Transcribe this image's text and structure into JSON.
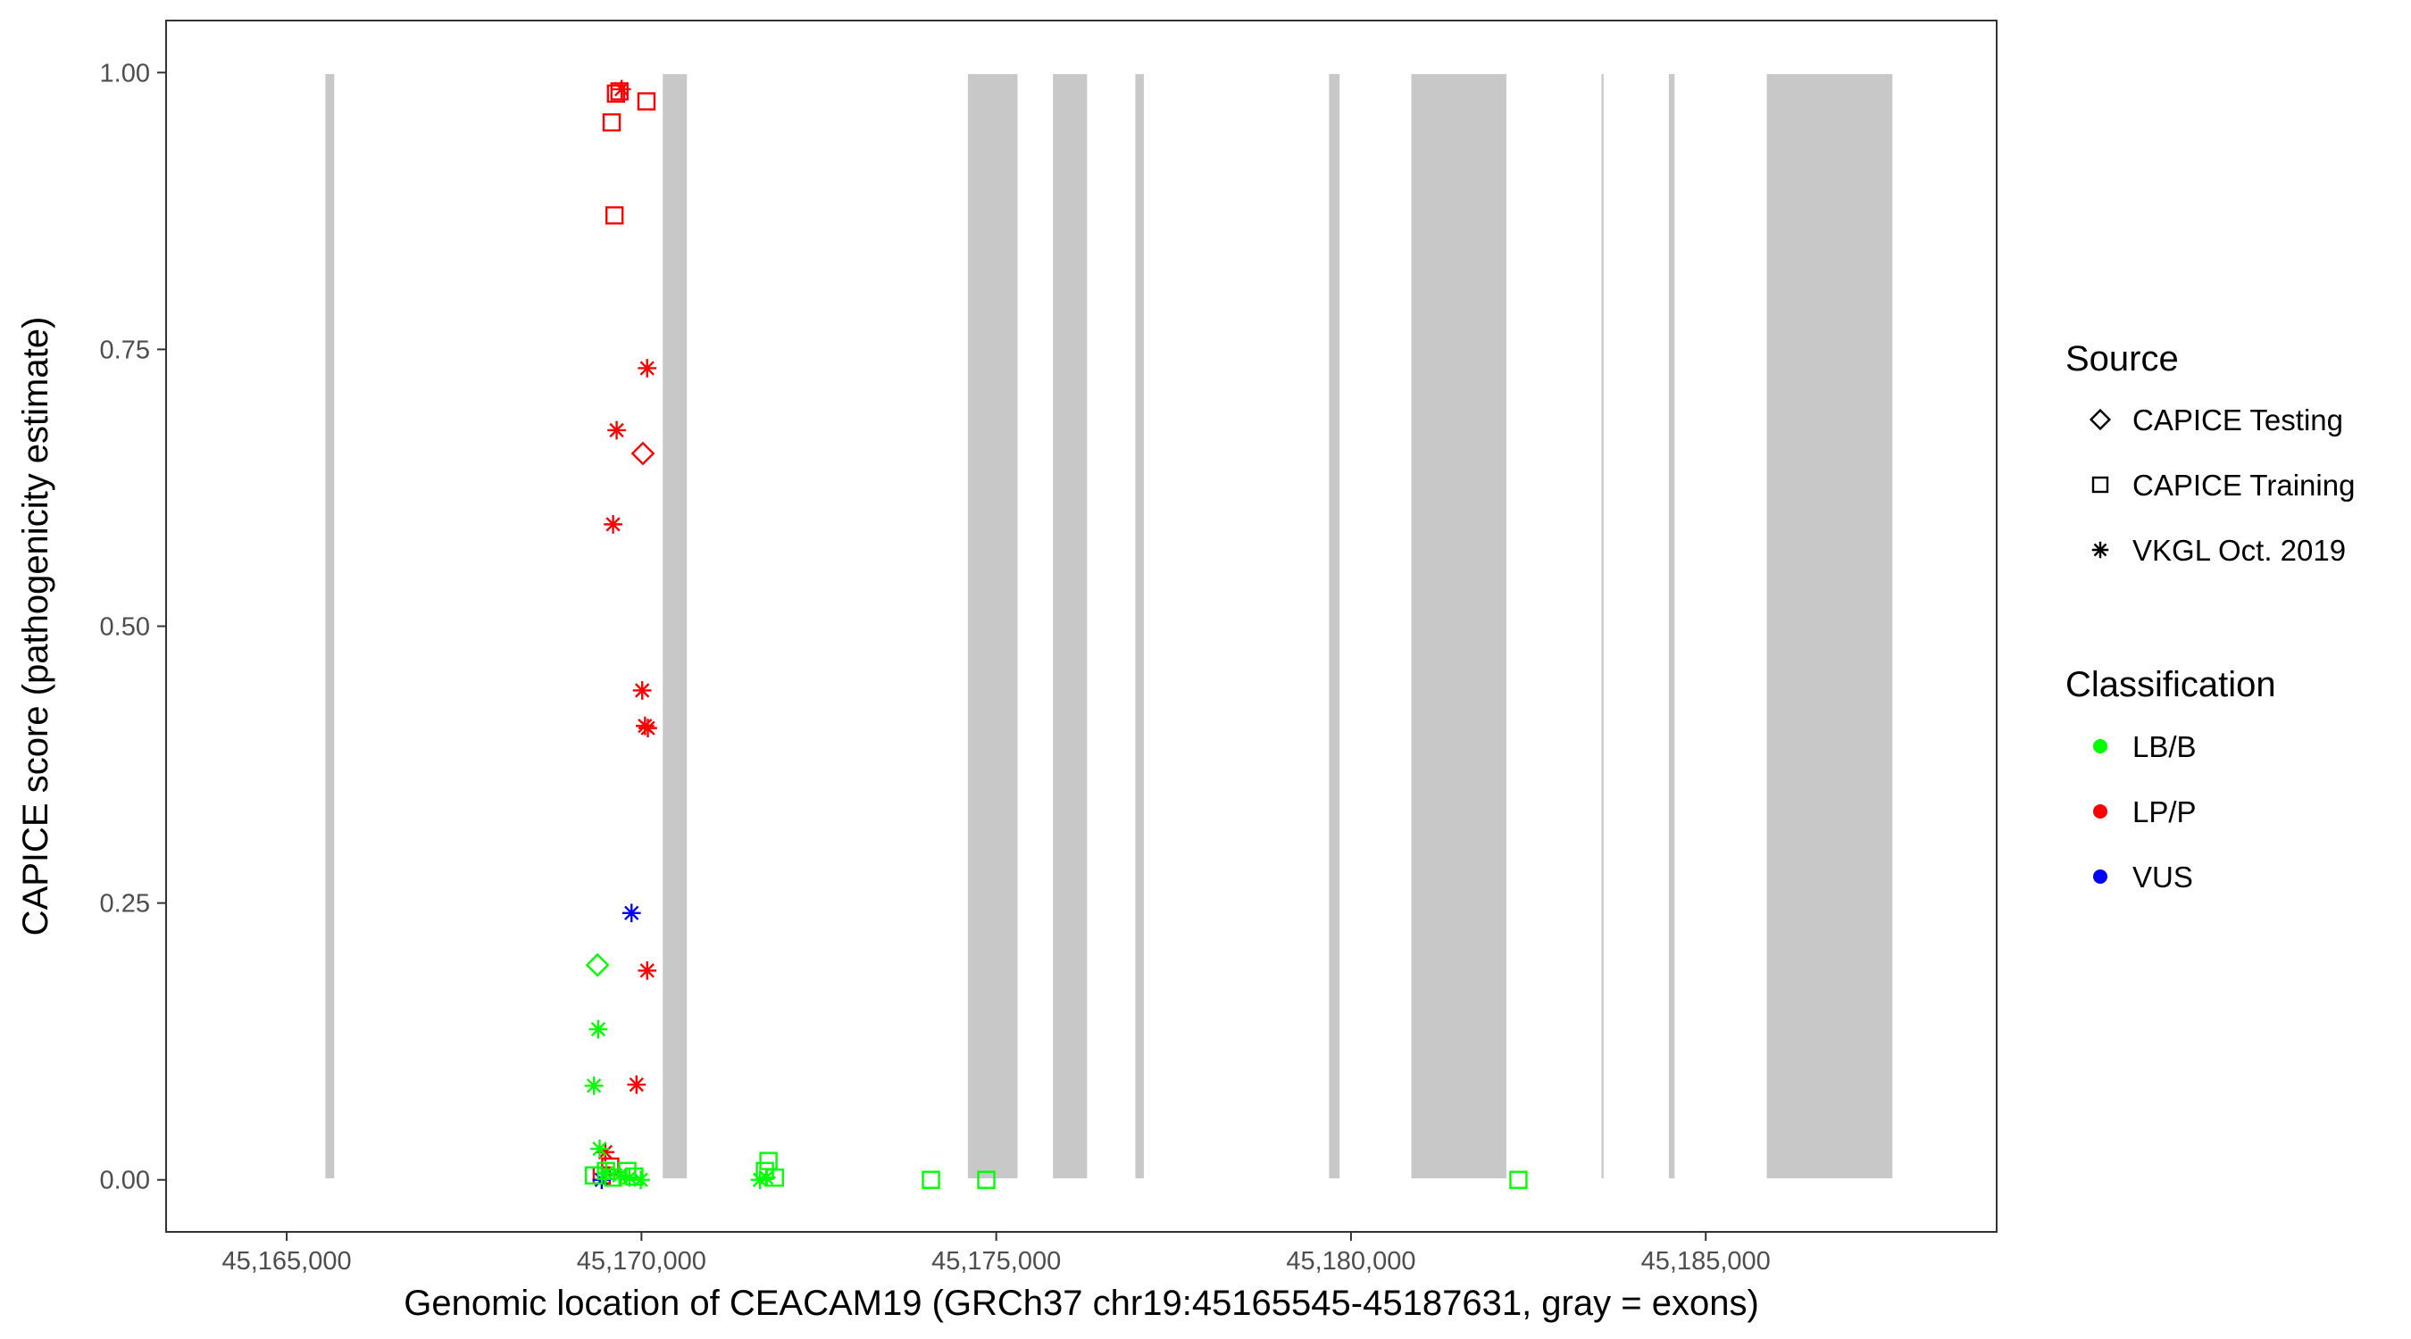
{
  "chart_data": {
    "type": "scatter",
    "title": "",
    "xlabel": "Genomic location of CEACAM19 (GRCh37 chr19:45165545-45187631, gray = exons)",
    "ylabel": "CAPICE score (pathogenicity estimate)",
    "xlim": [
      45163300,
      45189100
    ],
    "ylim": [
      -0.047,
      1.047
    ],
    "x_ticks": [
      45165000,
      45170000,
      45175000,
      45180000,
      45185000
    ],
    "x_tick_labels": [
      "45,165,000",
      "45,170,000",
      "45,175,000",
      "45,180,000",
      "45,185,000"
    ],
    "y_ticks": [
      0,
      0.25,
      0.5,
      0.75,
      1.0
    ],
    "y_tick_labels": [
      "0.00",
      "0.25",
      "0.50",
      "0.75",
      "1.00"
    ],
    "grid": false,
    "exon_color": "#c8c8c8",
    "exons": [
      [
        45165545,
        45165670
      ],
      [
        45170300,
        45170640
      ],
      [
        45174600,
        45175300
      ],
      [
        45175800,
        45176280
      ],
      [
        45176960,
        45177080
      ],
      [
        45179690,
        45179840
      ],
      [
        45180850,
        45182190
      ],
      [
        45183530,
        45183560
      ],
      [
        45184480,
        45184560
      ],
      [
        45185860,
        45187631
      ]
    ],
    "legends": [
      {
        "title": "Source",
        "position": "right",
        "entries": [
          {
            "label": "CAPICE Testing",
            "shape": "diamond"
          },
          {
            "label": "CAPICE Training",
            "shape": "square"
          },
          {
            "label": "VKGL Oct. 2019",
            "shape": "asterisk"
          }
        ]
      },
      {
        "title": "Classification",
        "position": "right",
        "entries": [
          {
            "label": "LB/B",
            "color": "#00ff00"
          },
          {
            "label": "LP/P",
            "color": "#ff0000"
          },
          {
            "label": "VUS",
            "color": "#0000ff"
          }
        ]
      }
    ],
    "series": [
      {
        "source": "CAPICE Training",
        "classification": "LP/P",
        "points": [
          [
            45169690,
            0.983
          ],
          [
            45169640,
            0.981
          ],
          [
            45170070,
            0.974
          ],
          [
            45169580,
            0.955
          ],
          [
            45169620,
            0.871
          ],
          [
            45169560,
            0.012
          ],
          [
            45169440,
            0.004
          ]
        ]
      },
      {
        "source": "VKGL Oct. 2019",
        "classification": "LP/P",
        "points": [
          [
            45169720,
            0.985
          ],
          [
            45170080,
            0.733
          ],
          [
            45169650,
            0.677
          ],
          [
            45169600,
            0.592
          ],
          [
            45170010,
            0.442
          ],
          [
            45170050,
            0.41
          ],
          [
            45170090,
            0.408
          ],
          [
            45170080,
            0.189
          ],
          [
            45169930,
            0.086
          ],
          [
            45169490,
            0.025
          ]
        ]
      },
      {
        "source": "CAPICE Testing",
        "classification": "LP/P",
        "points": [
          [
            45170020,
            0.656
          ]
        ]
      },
      {
        "source": "VKGL Oct. 2019",
        "classification": "VUS",
        "points": [
          [
            45169860,
            0.241
          ],
          [
            45169440,
            0.0
          ]
        ]
      },
      {
        "source": "CAPICE Testing",
        "classification": "LB/B",
        "points": [
          [
            45169380,
            0.194
          ]
        ]
      },
      {
        "source": "VKGL Oct. 2019",
        "classification": "LB/B",
        "points": [
          [
            45169390,
            0.136
          ],
          [
            45169330,
            0.085
          ],
          [
            45169410,
            0.028
          ],
          [
            45169500,
            0.006
          ],
          [
            45169690,
            0.004
          ],
          [
            45169830,
            0.002
          ],
          [
            45169990,
            0.0
          ],
          [
            45171670,
            0.0
          ],
          [
            45171760,
            0.002
          ]
        ]
      },
      {
        "source": "CAPICE Training",
        "classification": "LB/B",
        "points": [
          [
            45169330,
            0.004
          ],
          [
            45169500,
            0.008
          ],
          [
            45169600,
            0.002
          ],
          [
            45169800,
            0.008
          ],
          [
            45169900,
            0.003
          ],
          [
            45171790,
            0.017
          ],
          [
            45171740,
            0.008
          ],
          [
            45171880,
            0.002
          ],
          [
            45174080,
            0.0
          ],
          [
            45174860,
            0.0
          ],
          [
            45182360,
            0.0
          ]
        ]
      }
    ]
  }
}
